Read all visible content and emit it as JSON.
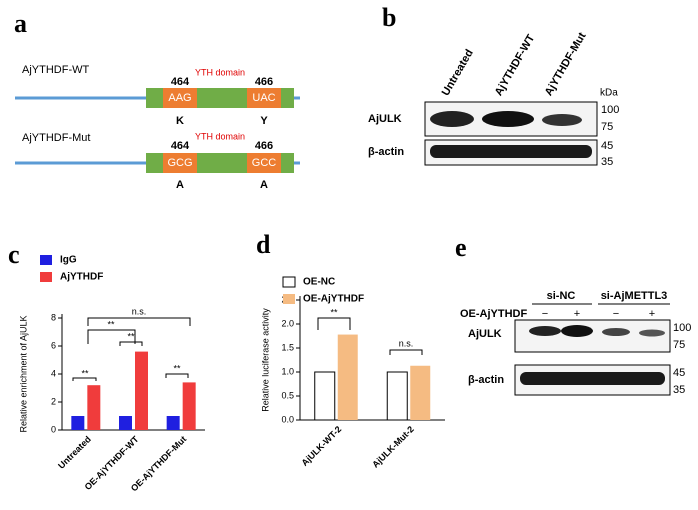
{
  "panel_labels": [
    "a",
    "b",
    "c",
    "d",
    "e"
  ],
  "panel_a": {
    "rows": [
      {
        "name": "AjYTHDF-WT",
        "domain": "YTH domain",
        "positions": [
          "464",
          "466"
        ],
        "codons": [
          "AAG",
          "UAC"
        ],
        "residues": [
          "K",
          "Y"
        ]
      },
      {
        "name": "AjYTHDF-Mut",
        "domain": "YTH domain",
        "positions": [
          "464",
          "466"
        ],
        "codons": [
          "GCG",
          "GCC"
        ],
        "residues": [
          "A",
          "A"
        ]
      }
    ]
  },
  "panel_b": {
    "lanes": [
      "Untreated",
      "AjYTHDF-WT",
      "AjYTHDF-Mut"
    ],
    "unit": "kDa",
    "blots": [
      {
        "label": "AjULK",
        "markers": [
          "100",
          "75"
        ]
      },
      {
        "label": "β-actin",
        "markers": [
          "45",
          "35"
        ]
      }
    ]
  },
  "chart_data": [
    {
      "type": "bar",
      "y_label": "Relative  enrichment of AjULK",
      "categories": [
        "Untreated",
        "OE-AjYTHDF-WT",
        "OE-AjYTHDF-Mut"
      ],
      "series": [
        {
          "name": "IgG",
          "color": "#1f1fe0",
          "values": [
            1.0,
            1.0,
            1.0
          ]
        },
        {
          "name": "AjYTHDF",
          "color": "#f03c3c",
          "values": [
            3.2,
            5.6,
            3.4
          ]
        }
      ],
      "ylim": [
        0,
        8
      ],
      "yticks": [
        0,
        2,
        4,
        6,
        8
      ],
      "annotations": [
        "**",
        "**",
        "**",
        "n.s.",
        "**"
      ]
    },
    {
      "type": "bar",
      "y_label": "Relative luciferase activity",
      "categories": [
        "AjULK-WT-2",
        "AjULK-Mut-2"
      ],
      "series": [
        {
          "name": "OE-NC",
          "color": "#ffffff",
          "values": [
            1.0,
            1.0
          ]
        },
        {
          "name": "OE-AjYTHDF",
          "color": "#f5bb82",
          "values": [
            1.78,
            1.13
          ]
        }
      ],
      "ylim": [
        0,
        2.5
      ],
      "yticks": [
        {
          "value": 0,
          "label": "0.0"
        },
        0.5,
        {
          "value": 1,
          "label": "1.0"
        },
        1.5,
        {
          "value": 2,
          "label": "2.0"
        },
        2.5
      ],
      "annotations": [
        "**",
        "n.s."
      ]
    }
  ],
  "panel_e": {
    "groups": [
      "si-NC",
      "si-AjMETTL3"
    ],
    "treatment": "OE-AjYTHDF",
    "signs": [
      "−",
      "+",
      "−",
      "+"
    ],
    "blots": [
      {
        "label": "AjULK",
        "markers": [
          "100",
          "75"
        ]
      },
      {
        "label": "β-actin",
        "markers": [
          "45",
          "35"
        ]
      }
    ]
  }
}
